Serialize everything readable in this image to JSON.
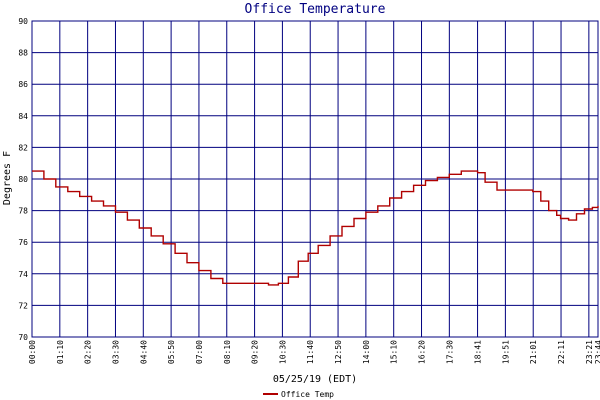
{
  "chart_data": {
    "type": "line",
    "title": "Office Temperature",
    "xlabel": "05/25/19 (EDT)",
    "ylabel": "Degrees F",
    "ylim": [
      70,
      90
    ],
    "y_ticks": [
      "70",
      "72",
      "74",
      "76",
      "78",
      "80",
      "82",
      "84",
      "86",
      "88",
      "90"
    ],
    "x_ticks": [
      "00:00",
      "01:10",
      "02:20",
      "03:30",
      "04:40",
      "05:50",
      "07:00",
      "08:10",
      "09:20",
      "10:30",
      "11:40",
      "12:50",
      "14:00",
      "15:10",
      "16:20",
      "17:30",
      "18:41",
      "19:51",
      "21:01",
      "22:11",
      "23:21",
      "23:44"
    ],
    "grid": true,
    "legend_position": "bottom",
    "colors": {
      "line": "#b00000",
      "grid": "#00007f",
      "text": "#000000",
      "title": "#000080"
    },
    "series": [
      {
        "name": "Office Temp",
        "x": [
          "00:00",
          "00:30",
          "01:00",
          "01:30",
          "02:00",
          "02:30",
          "03:00",
          "03:30",
          "04:00",
          "04:30",
          "05:00",
          "05:30",
          "06:00",
          "06:30",
          "07:00",
          "07:30",
          "08:00",
          "08:30",
          "09:00",
          "09:30",
          "09:55",
          "10:20",
          "10:45",
          "11:10",
          "11:35",
          "12:00",
          "12:30",
          "13:00",
          "13:30",
          "14:00",
          "14:30",
          "15:00",
          "15:30",
          "16:00",
          "16:30",
          "17:00",
          "17:30",
          "18:00",
          "18:20",
          "18:41",
          "19:00",
          "19:30",
          "20:00",
          "20:30",
          "21:00",
          "21:20",
          "21:40",
          "22:00",
          "22:10",
          "22:30",
          "22:50",
          "23:10",
          "23:30",
          "23:44"
        ],
        "values": [
          80.5,
          80.0,
          79.5,
          79.2,
          78.9,
          78.6,
          78.3,
          77.9,
          77.4,
          76.9,
          76.4,
          75.9,
          75.3,
          74.7,
          74.2,
          73.7,
          73.4,
          73.4,
          73.4,
          73.4,
          73.3,
          73.4,
          73.8,
          74.8,
          75.3,
          75.8,
          76.4,
          77.0,
          77.5,
          77.9,
          78.3,
          78.8,
          79.2,
          79.6,
          79.9,
          80.1,
          80.3,
          80.5,
          80.5,
          80.4,
          79.8,
          79.3,
          79.3,
          79.3,
          79.2,
          78.6,
          78.0,
          77.7,
          77.5,
          77.4,
          77.8,
          78.1,
          78.2,
          78.3
        ]
      }
    ]
  }
}
